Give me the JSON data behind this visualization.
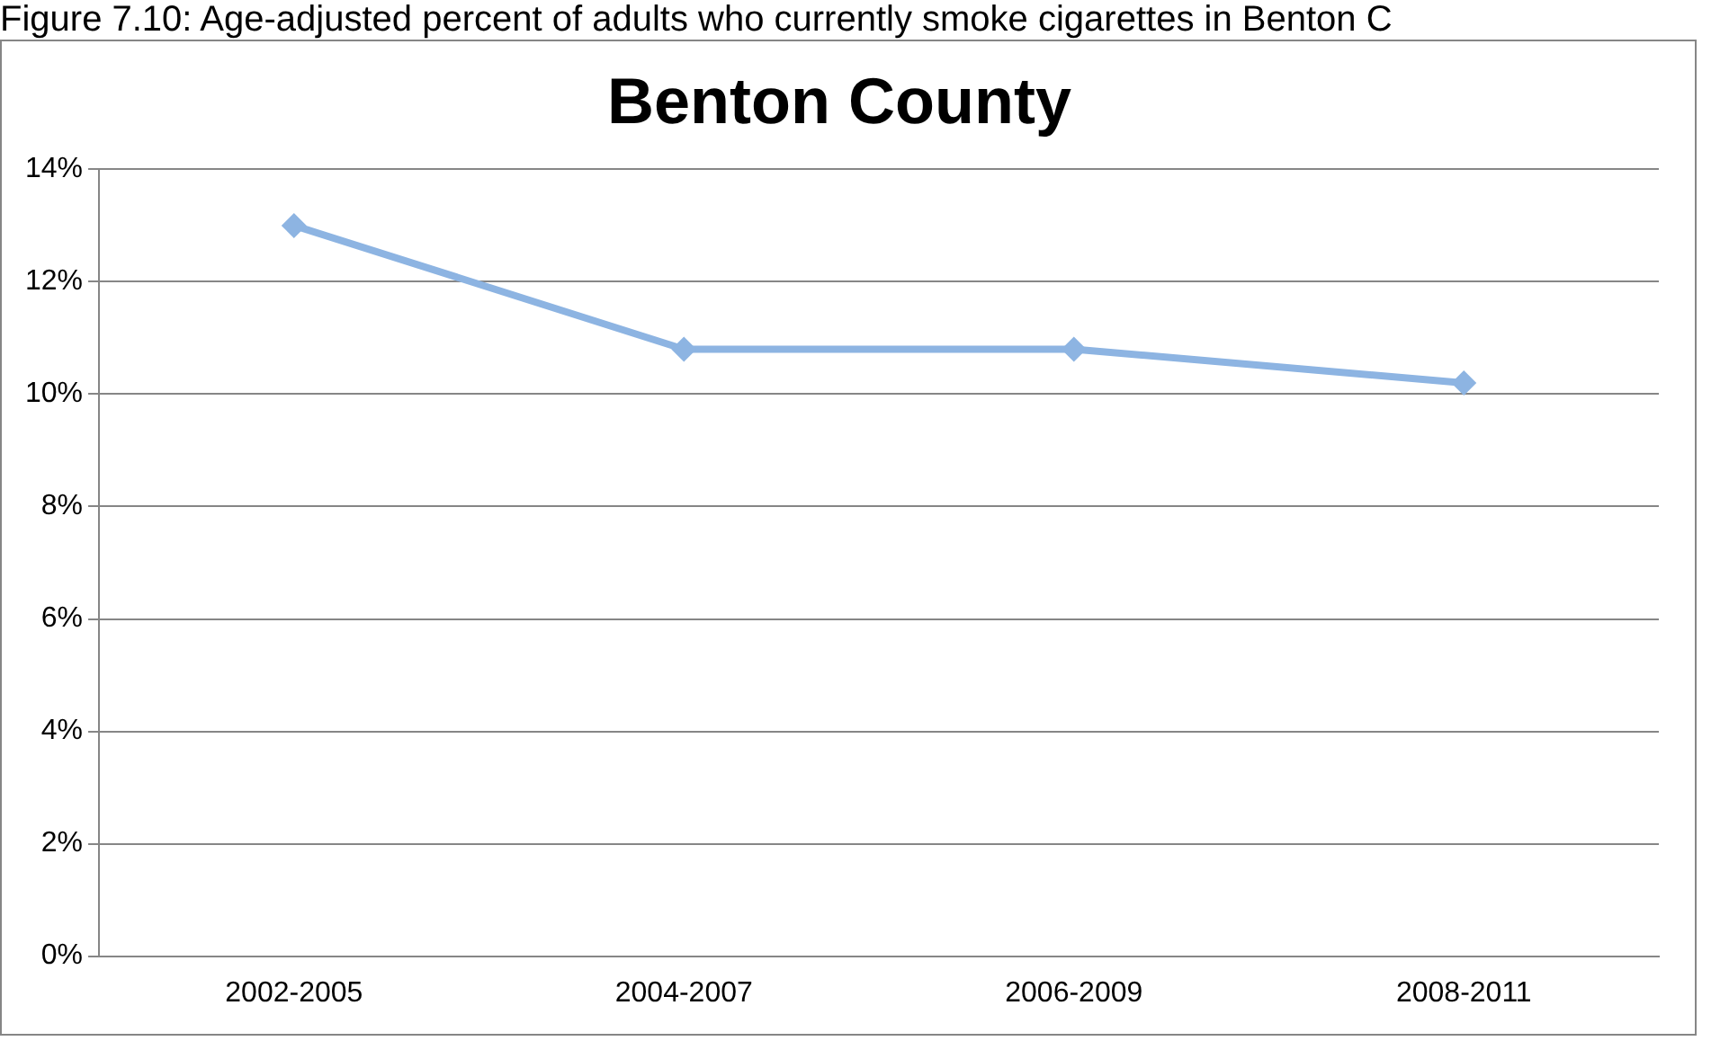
{
  "chart_data": {
    "type": "line",
    "title": "Benton County",
    "annotations": [
      "Figure 7.10: Age-adjusted percent of adults who currently smoke cigarettes in Benton C"
    ],
    "categories": [
      "2002-2005",
      "2004-2007",
      "2006-2009",
      "2008-2011"
    ],
    "series": [
      {
        "color": "#8db4e2",
        "values": [
          13,
          10.8,
          10.8,
          10.2
        ]
      }
    ],
    "ylim": [
      0,
      14
    ],
    "yticks": [
      {
        "value": 0,
        "label": "0%"
      },
      {
        "value": 2,
        "label": "2%"
      },
      {
        "value": 4,
        "label": "4%"
      },
      {
        "value": 6,
        "label": "6%"
      },
      {
        "value": 8,
        "label": "8%"
      },
      {
        "value": 10,
        "label": "10%"
      },
      {
        "value": 12,
        "label": "12%"
      },
      {
        "value": 14,
        "label": "14%"
      }
    ],
    "grid": "y",
    "legend": false,
    "marker": "diamond",
    "line_style": "solid"
  }
}
